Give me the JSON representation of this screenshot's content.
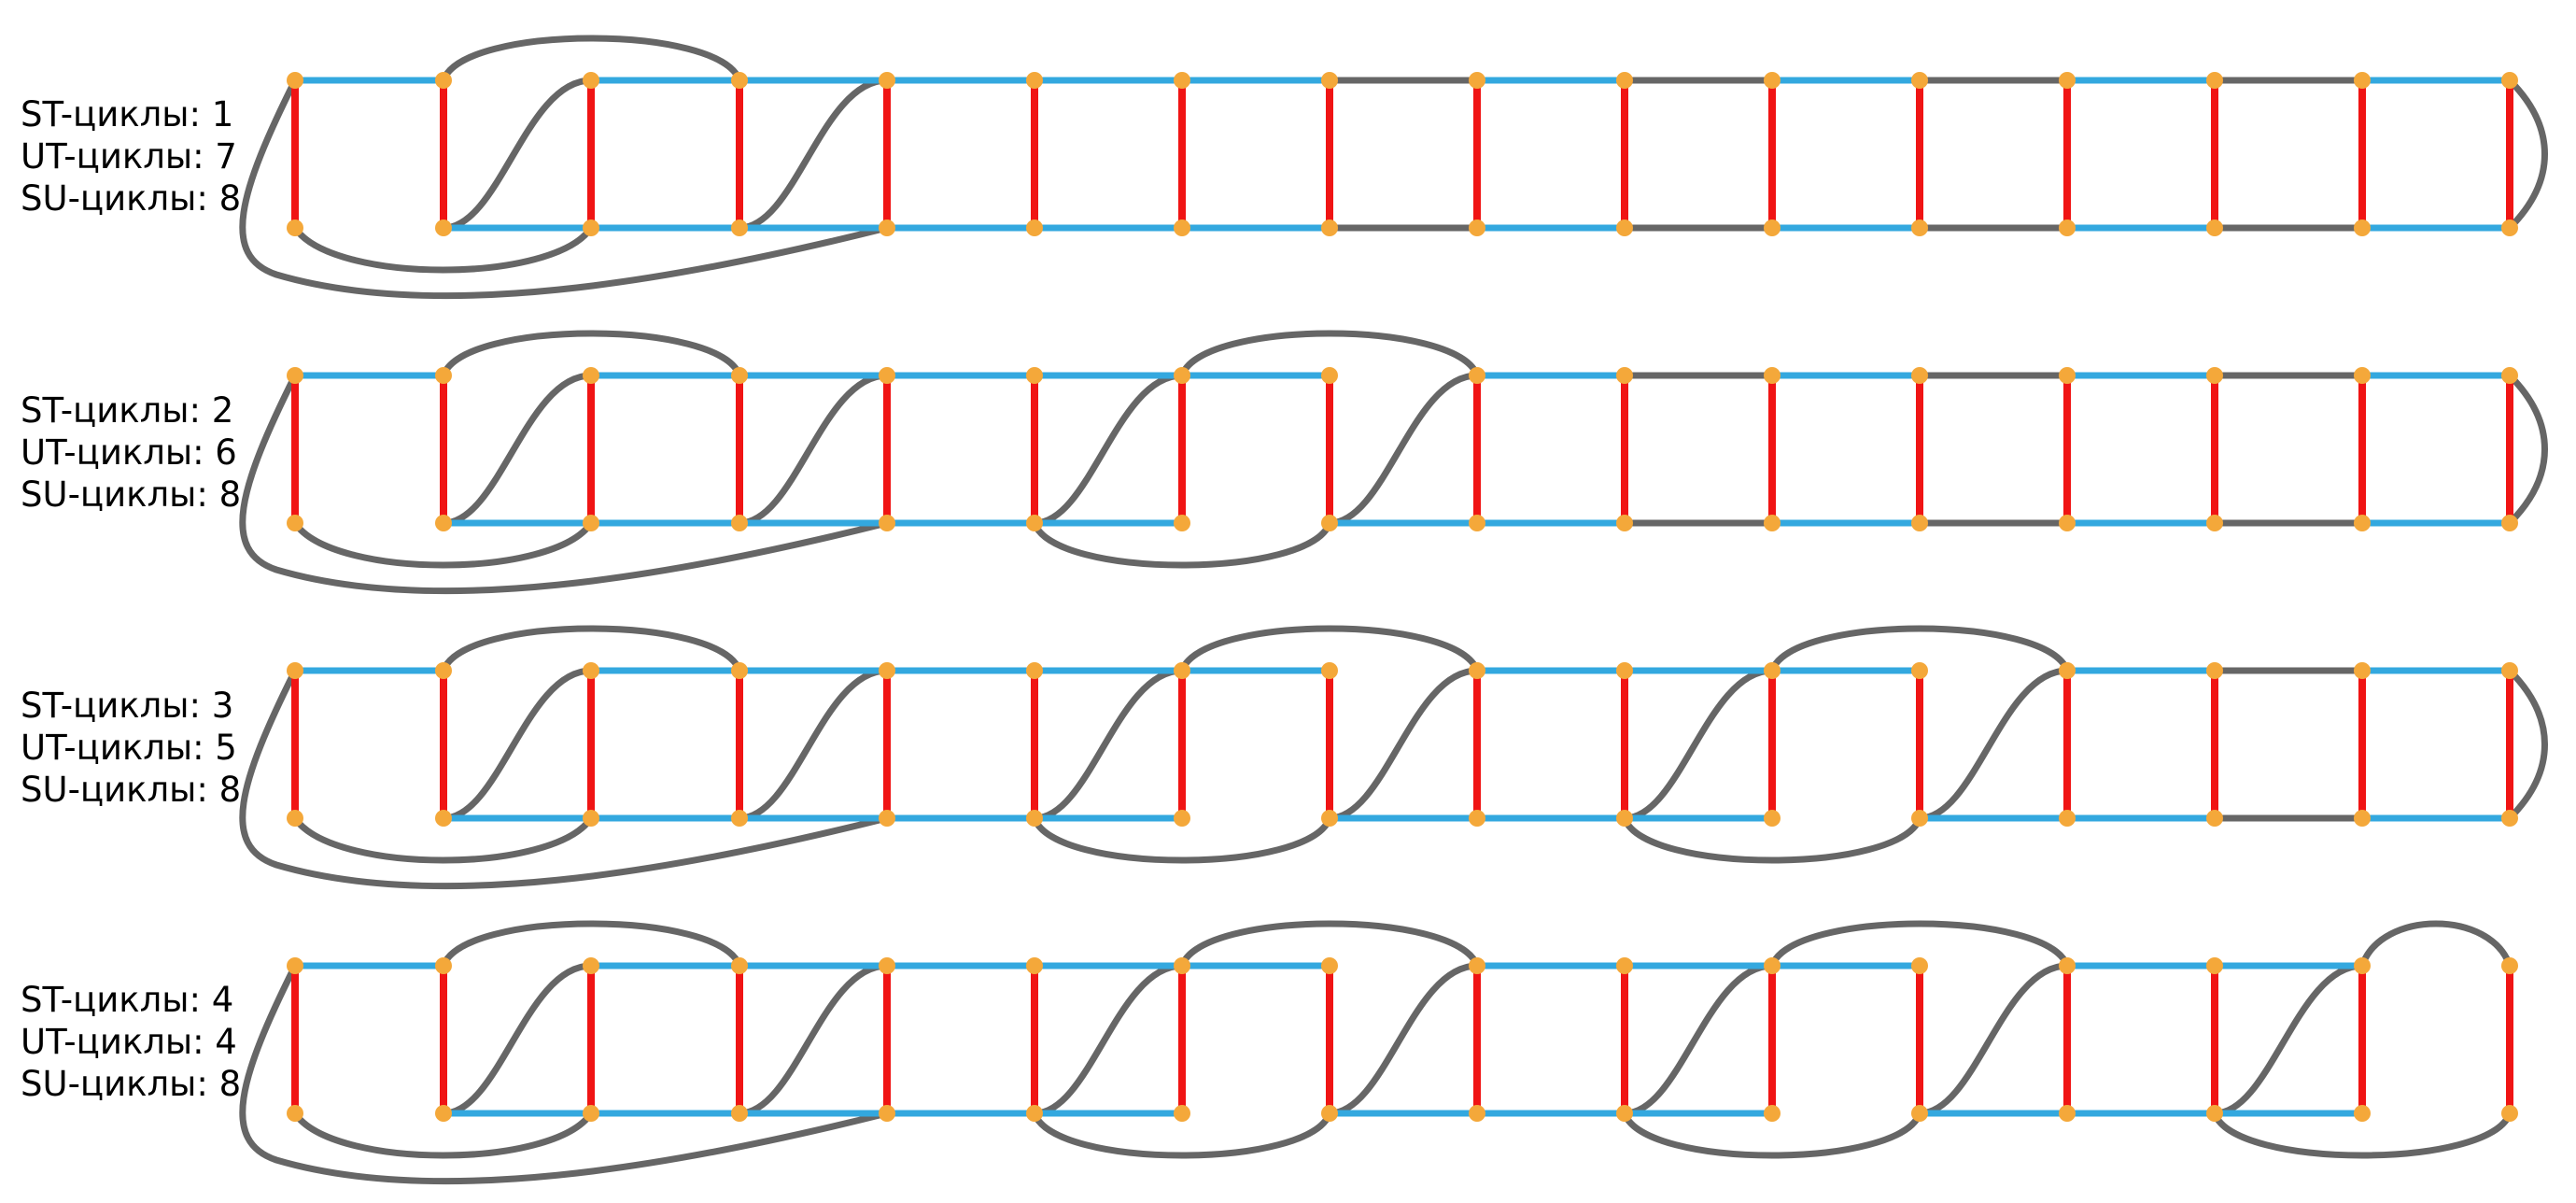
{
  "colors": {
    "background": "#ffffff",
    "vertical_edge": "#f01414",
    "horizontal_edge": "#33a8df",
    "arc": "#666666",
    "node": "#f4a83a",
    "text": "#000000"
  },
  "panels": [
    {
      "st_label": "ST-циклы: 1",
      "ut_label": "UT-циклы: 7",
      "su_label": "SU-циклы: 8",
      "st_cycles": 1,
      "ut_cycles": 7,
      "su_cycles": 8
    },
    {
      "st_label": "ST-циклы: 2",
      "ut_label": "UT-циклы: 6",
      "su_label": "SU-циклы: 8",
      "st_cycles": 2,
      "ut_cycles": 6,
      "su_cycles": 8
    },
    {
      "st_label": "ST-циклы: 3",
      "ut_label": "UT-циклы: 5",
      "su_label": "SU-циклы: 8",
      "st_cycles": 3,
      "ut_cycles": 5,
      "su_cycles": 8
    },
    {
      "st_label": "ST-циклы: 4",
      "ut_label": "UT-циклы: 4",
      "su_label": "SU-циклы: 8",
      "st_cycles": 4,
      "ut_cycles": 4,
      "su_cycles": 8
    }
  ]
}
